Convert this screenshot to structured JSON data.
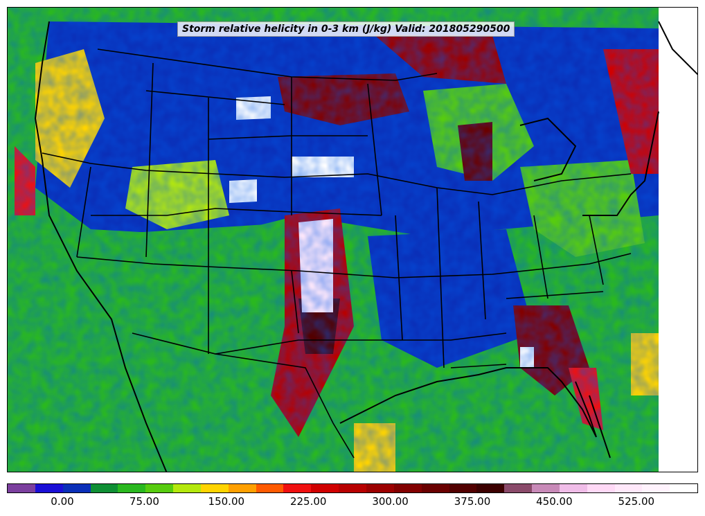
{
  "map": {
    "title": "Storm relative helicity in 0-3 km (J/kg) Valid: 201805290500",
    "field": "storm-relative-helicity"
  },
  "colorbar": {
    "colors": [
      "#7b3f9e",
      "#1a0fd6",
      "#0a2fb8",
      "#0f8f34",
      "#2ab81f",
      "#57cc0f",
      "#b4e80d",
      "#ffd400",
      "#ffa000",
      "#ff5a00",
      "#f01010",
      "#d00000",
      "#b80000",
      "#9c0000",
      "#820000",
      "#6a0000",
      "#520000",
      "#3c0000",
      "#8a4a6a",
      "#c88ab8",
      "#f0bde8",
      "#ffd9f6",
      "#ffe8fa",
      "#fff3fd",
      "#ffffff"
    ],
    "tick_labels": [
      "0.00",
      "75.00",
      "150.00",
      "225.00",
      "300.00",
      "375.00",
      "450.00",
      "525.00"
    ]
  }
}
